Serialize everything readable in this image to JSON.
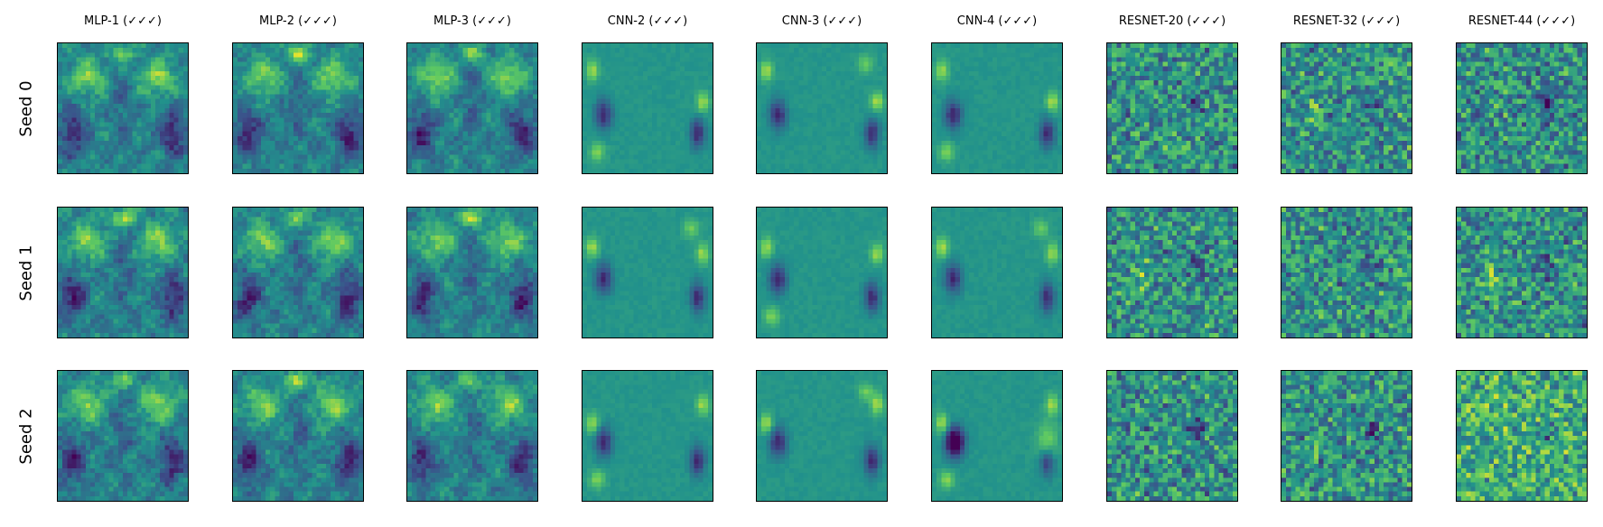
{
  "chart_data": {
    "type": "heatmap",
    "colormap": "viridis",
    "colormap_stops": [
      "#440154",
      "#3b528b",
      "#21918c",
      "#5ec962",
      "#fde725"
    ],
    "grid": false,
    "axis_ticks": false,
    "column_titles": [
      "MLP-1 (✓✓✓)",
      "MLP-2 (✓✓✓)",
      "MLP-3 (✓✓✓)",
      "CNN-2 (✓✓✓)",
      "CNN-3 (✓✓✓)",
      "CNN-4 (✓✓✓)",
      "RESNET-20 (✓✓✓)",
      "RESNET-32 (✓✓✓)",
      "RESNET-44 (✓✓✓)"
    ],
    "row_labels": [
      "Seed 0",
      "Seed 1",
      "Seed 2"
    ],
    "panel_resolution": [
      28,
      28
    ]
  }
}
